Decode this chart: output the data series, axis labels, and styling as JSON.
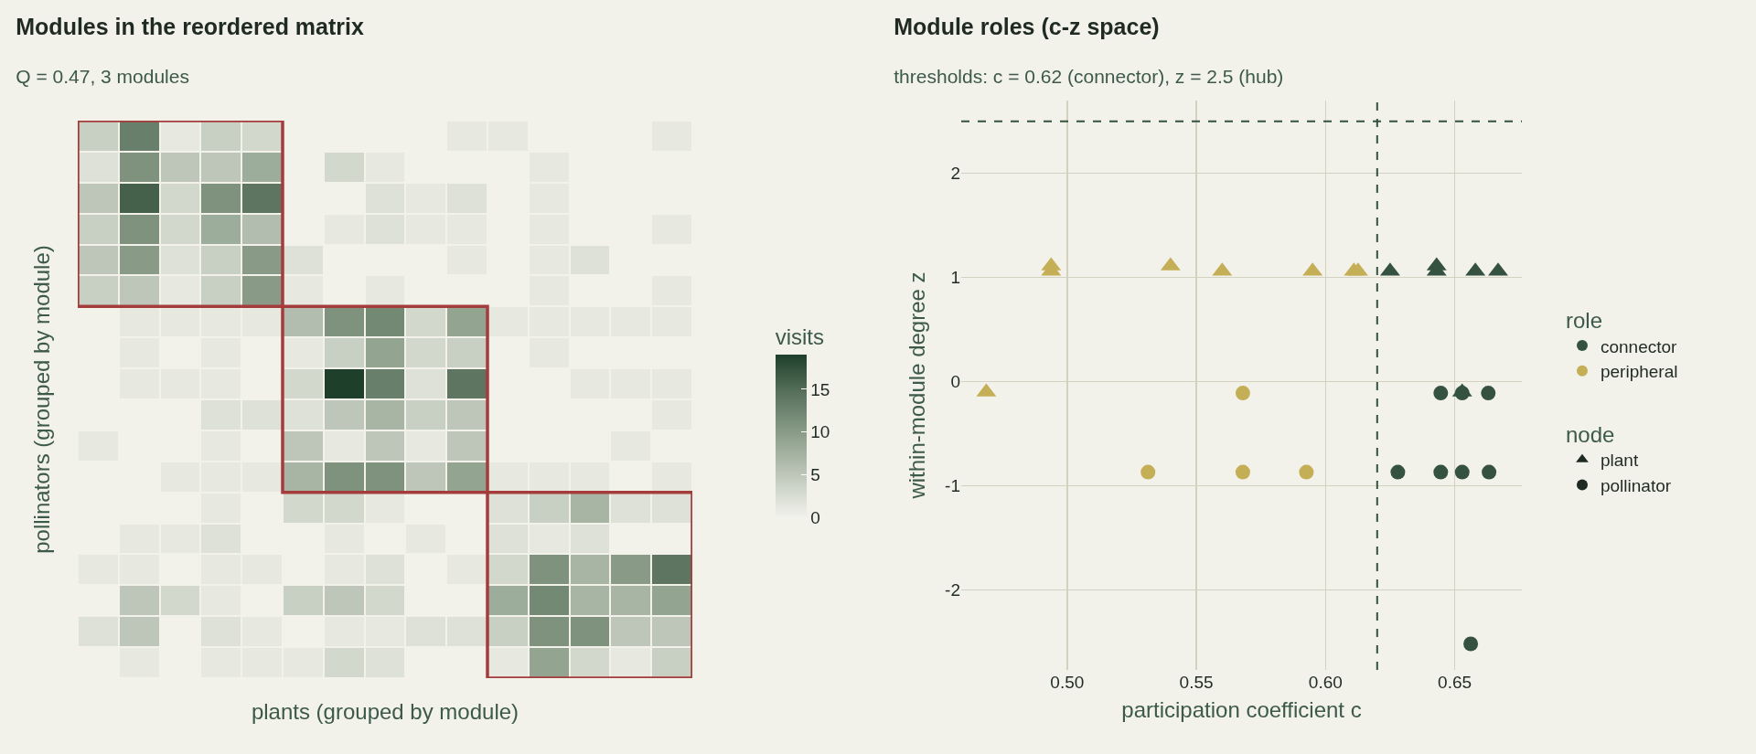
{
  "chart_data": [
    {
      "type": "heatmap",
      "title": "Modules in the reordered matrix",
      "subtitle": "Q = 0.47, 3 modules",
      "xlabel": "plants (grouped by module)",
      "ylabel": "pollinators (grouped by module)",
      "clabel": "visits",
      "clim": [
        0,
        19
      ],
      "cticks": [
        0,
        5,
        10,
        15
      ],
      "categories": [
        null,
        null,
        null,
        null,
        null,
        null,
        null,
        null,
        null,
        null,
        null,
        null,
        null,
        null,
        null
      ],
      "y_categories": [
        null,
        null,
        null,
        null,
        null,
        null,
        null,
        null,
        null,
        null,
        null,
        null,
        null,
        null,
        null,
        null,
        null,
        null
      ],
      "cells": [
        [
          4,
          13,
          1,
          4,
          3,
          null,
          null,
          null,
          null,
          1,
          1,
          null,
          null,
          null,
          1
        ],
        [
          2,
          11,
          5,
          5,
          8,
          null,
          3,
          1,
          null,
          null,
          null,
          1,
          null,
          null,
          null
        ],
        [
          5,
          16,
          3,
          11,
          14,
          null,
          null,
          2,
          1,
          2,
          null,
          1,
          null,
          null,
          null
        ],
        [
          4,
          11,
          3,
          8,
          6,
          null,
          1,
          2,
          1,
          1,
          null,
          1,
          null,
          null,
          1
        ],
        [
          5,
          10,
          2,
          4,
          10,
          2,
          null,
          null,
          null,
          1,
          null,
          1,
          2,
          null,
          null
        ],
        [
          4,
          5,
          1,
          4,
          10,
          1,
          null,
          1,
          null,
          null,
          null,
          1,
          null,
          null,
          1
        ],
        [
          null,
          1,
          1,
          1,
          1,
          6,
          11,
          12,
          3,
          9,
          1,
          1,
          1,
          1,
          1
        ],
        [
          null,
          1,
          null,
          1,
          null,
          1,
          4,
          9,
          3,
          4,
          null,
          1,
          null,
          null,
          null
        ],
        [
          null,
          1,
          1,
          1,
          null,
          3,
          19,
          13,
          2,
          14,
          null,
          null,
          1,
          1,
          1
        ],
        [
          null,
          null,
          null,
          2,
          2,
          2,
          5,
          7,
          4,
          5,
          null,
          null,
          null,
          null,
          1
        ],
        [
          1,
          null,
          null,
          1,
          null,
          5,
          1,
          5,
          1,
          5,
          null,
          null,
          null,
          1,
          null
        ],
        [
          null,
          null,
          1,
          1,
          1,
          7,
          11,
          11,
          5,
          9,
          1,
          1,
          1,
          null,
          1
        ],
        [
          null,
          null,
          null,
          1,
          null,
          3,
          3,
          1,
          null,
          null,
          2,
          4,
          7,
          2,
          2
        ],
        [
          null,
          1,
          1,
          2,
          null,
          null,
          1,
          null,
          1,
          null,
          2,
          1,
          2,
          null,
          null
        ],
        [
          1,
          1,
          null,
          1,
          1,
          null,
          1,
          2,
          null,
          1,
          3,
          11,
          7,
          10,
          14
        ],
        [
          null,
          5,
          3,
          1,
          null,
          4,
          5,
          3,
          null,
          null,
          8,
          12,
          7,
          7,
          9
        ],
        [
          2,
          5,
          null,
          2,
          1,
          null,
          1,
          1,
          2,
          2,
          4,
          11,
          11,
          5,
          5
        ],
        [
          null,
          1,
          null,
          1,
          1,
          1,
          3,
          2,
          null,
          null,
          1,
          9,
          3,
          1,
          4
        ]
      ]
    },
    {
      "type": "scatter",
      "title": "Module roles (c-z space)",
      "subtitle": "thresholds: c = 0.62 (connector), z = 2.5 (hub)",
      "xlabel": "participation coefficient c",
      "ylabel": "within-module degree z",
      "legend_title": [
        "role",
        "node"
      ],
      "xlim": [
        0.459,
        0.676
      ],
      "ylim": [
        -2.77,
        2.7
      ],
      "xticks": [
        {
          "value": 0.5,
          "label": "0.50"
        },
        {
          "value": 0.55,
          "label": "0.55"
        },
        {
          "value": 0.6,
          "label": "0.60"
        },
        {
          "value": 0.65,
          "label": "0.65"
        }
      ],
      "yticks": [
        -2,
        -1,
        0,
        1,
        2
      ],
      "grid": true,
      "legend": "right",
      "ref_lines": [
        {
          "axis": "x",
          "value": 0.62,
          "color": "#34523f",
          "line_style": "dashed"
        },
        {
          "axis": "y",
          "value": 2.5,
          "color": "#34523f",
          "line_style": "dashed"
        }
      ],
      "series": [
        {
          "name": "connector",
          "color": "#34523f",
          "marker": "circle",
          "x": [
            0.6446,
            0.6529,
            0.663,
            0.628,
            0.6446,
            0.6529,
            0.6633,
            0.6562
          ],
          "values": [
            -0.11,
            -0.11,
            -0.11,
            -0.87,
            -0.87,
            -0.87,
            -0.87,
            -2.52
          ]
        },
        {
          "name": "peripheral",
          "color": "#c4ae56",
          "marker": "circle",
          "x": [
            0.568,
            0.5313,
            0.568,
            0.5926
          ],
          "values": [
            -0.11,
            -0.87,
            -0.87,
            -0.87
          ]
        },
        {
          "color": "#34523f",
          "marker": "triangle",
          "x": [
            0.625,
            0.643,
            0.643,
            0.658,
            0.6668,
            0.6529
          ],
          "values": [
            1.06,
            1.11,
            1.06,
            1.06,
            1.06,
            -0.1
          ]
        },
        {
          "color": "#c4ae56",
          "marker": "triangle",
          "x": [
            0.4938,
            0.4938,
            0.54,
            0.56,
            0.595,
            0.611,
            0.6126,
            0.4687
          ],
          "values": [
            1.11,
            1.06,
            1.11,
            1.06,
            1.06,
            1.06,
            1.06,
            -0.1
          ]
        },
        {
          "name": "plant",
          "color": "#1f2a22",
          "marker": "triangle"
        },
        {
          "name": "pollinator",
          "color": "#1f2a22",
          "marker": "circle"
        }
      ]
    }
  ]
}
